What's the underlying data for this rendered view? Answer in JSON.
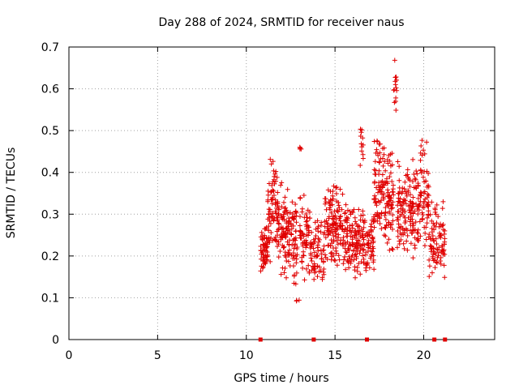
{
  "chart_data": {
    "type": "scatter",
    "title": "Day 288 of 2024, SRMTID for receiver naus",
    "xlabel": "GPS time / hours",
    "ylabel": "SRMTID / TECUs",
    "xlim": [
      0,
      24
    ],
    "ylim": [
      0,
      0.7
    ],
    "xticks": [
      "0",
      "5",
      "10",
      "15",
      "20"
    ],
    "yticks": [
      "0",
      "0.1",
      "0.2",
      "0.3",
      "0.4",
      "0.5",
      "0.6",
      "0.7"
    ],
    "grid": true,
    "marker": "+",
    "color": "#e00000",
    "zero_markers_x": [
      10.8,
      13.8,
      16.8,
      20.6,
      21.2
    ],
    "clusters": [
      {
        "x": [
          10.8,
          11.2
        ],
        "y_range": [
          0.15,
          0.28
        ],
        "n": 60
      },
      {
        "x": [
          11.2,
          11.8
        ],
        "y_range": [
          0.18,
          0.44
        ],
        "n": 80
      },
      {
        "x": [
          11.8,
          12.4
        ],
        "y_range": [
          0.14,
          0.38
        ],
        "n": 80
      },
      {
        "x": [
          12.4,
          12.9
        ],
        "y_range": [
          0.12,
          0.34
        ],
        "n": 60
      },
      {
        "x": [
          12.8,
          13.0
        ],
        "y_range": [
          0.07,
          0.1
        ],
        "n": 3
      },
      {
        "x": [
          13.0,
          13.1
        ],
        "y_range": [
          0.44,
          0.47
        ],
        "n": 4
      },
      {
        "x": [
          13.0,
          13.6
        ],
        "y_range": [
          0.14,
          0.36
        ],
        "n": 60
      },
      {
        "x": [
          13.6,
          14.4
        ],
        "y_range": [
          0.11,
          0.3
        ],
        "n": 70
      },
      {
        "x": [
          14.4,
          15.4
        ],
        "y_range": [
          0.17,
          0.38
        ],
        "n": 120
      },
      {
        "x": [
          15.4,
          16.0
        ],
        "y_range": [
          0.16,
          0.35
        ],
        "n": 70
      },
      {
        "x": [
          16.0,
          16.6
        ],
        "y_range": [
          0.13,
          0.33
        ],
        "n": 70
      },
      {
        "x": [
          16.4,
          16.6
        ],
        "y_range": [
          0.4,
          0.53
        ],
        "n": 12
      },
      {
        "x": [
          16.6,
          17.2
        ],
        "y_range": [
          0.16,
          0.3
        ],
        "n": 60
      },
      {
        "x": [
          17.2,
          17.8
        ],
        "y_range": [
          0.22,
          0.5
        ],
        "n": 80
      },
      {
        "x": [
          17.8,
          18.3
        ],
        "y_range": [
          0.18,
          0.48
        ],
        "n": 70
      },
      {
        "x": [
          18.3,
          18.5
        ],
        "y_range": [
          0.54,
          0.67
        ],
        "n": 14
      },
      {
        "x": [
          18.5,
          19.2
        ],
        "y_range": [
          0.2,
          0.44
        ],
        "n": 80
      },
      {
        "x": [
          19.2,
          19.8
        ],
        "y_range": [
          0.18,
          0.46
        ],
        "n": 70
      },
      {
        "x": [
          19.8,
          20.3
        ],
        "y_range": [
          0.2,
          0.49
        ],
        "n": 60
      },
      {
        "x": [
          20.3,
          20.8
        ],
        "y_range": [
          0.14,
          0.34
        ],
        "n": 50
      },
      {
        "x": [
          20.8,
          21.2
        ],
        "y_range": [
          0.12,
          0.36
        ],
        "n": 40
      }
    ]
  }
}
